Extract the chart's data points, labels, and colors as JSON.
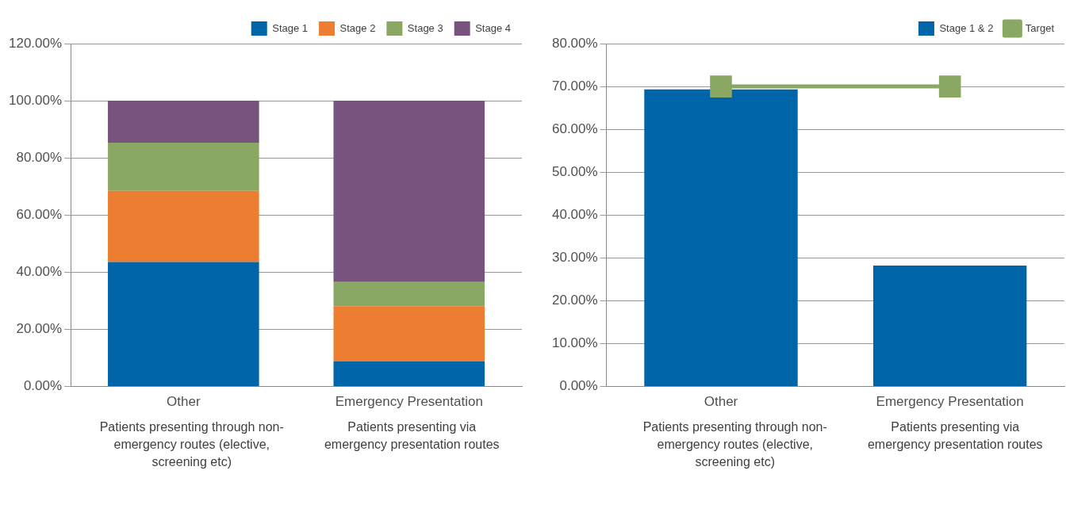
{
  "chart_data": [
    {
      "type": "bar",
      "categories": [
        "Other",
        "Emergency Presentation"
      ],
      "stacked": true,
      "legend": "top right",
      "grid": "y",
      "ylim": [
        0,
        120
      ],
      "yticks": [
        {
          "value": 0,
          "label": "0.00%"
        },
        {
          "value": 20,
          "label": "20.00%"
        },
        {
          "value": 40,
          "label": "40.00%"
        },
        {
          "value": 60,
          "label": "60.00%"
        },
        {
          "value": 80,
          "label": "80.00%"
        },
        {
          "value": 100,
          "label": "100.00%"
        },
        {
          "value": 120,
          "label": "120.00%"
        }
      ],
      "series": [
        {
          "name": "Stage 1",
          "color": "#0064a8",
          "values": [
            43.6,
            8.8
          ]
        },
        {
          "name": "Stage 2",
          "color": "#ed7d31",
          "values": [
            24.9,
            19.3
          ]
        },
        {
          "name": "Stage 3",
          "color": "#8aa864",
          "values": [
            16.8,
            8.5
          ]
        },
        {
          "name": "Stage 4",
          "color": "#77537e",
          "values": [
            14.7,
            63.4
          ]
        }
      ],
      "annotations": [
        "Patients presenting through non-emergency routes (elective, screening etc)",
        "Patients presenting via emergency presentation routes"
      ]
    },
    {
      "type": "bar",
      "categories": [
        "Other",
        "Emergency Presentation"
      ],
      "legend": "top right",
      "grid": "y",
      "marker": "square",
      "ylim": [
        0,
        80
      ],
      "yticks": [
        {
          "value": 0,
          "label": "0.00%"
        },
        {
          "value": 10,
          "label": "10.00%"
        },
        {
          "value": 20,
          "label": "20.00%"
        },
        {
          "value": 30,
          "label": "30.00%"
        },
        {
          "value": 40,
          "label": "40.00%"
        },
        {
          "value": 50,
          "label": "50.00%"
        },
        {
          "value": 60,
          "label": "60.00%"
        },
        {
          "value": 70,
          "label": "70.00%"
        },
        {
          "value": 80,
          "label": "80.00%"
        }
      ],
      "series": [
        {
          "name": "Stage 1 & 2",
          "color": "#0064a8",
          "values": [
            69.3,
            28.2
          ]
        },
        {
          "name": "Target",
          "type": "line",
          "color": "#8aa864",
          "values": [
            70,
            70
          ]
        }
      ],
      "annotations": [
        "Patients presenting through non-emergency routes (elective, screening etc)",
        "Patients presenting via emergency presentation routes"
      ]
    }
  ]
}
